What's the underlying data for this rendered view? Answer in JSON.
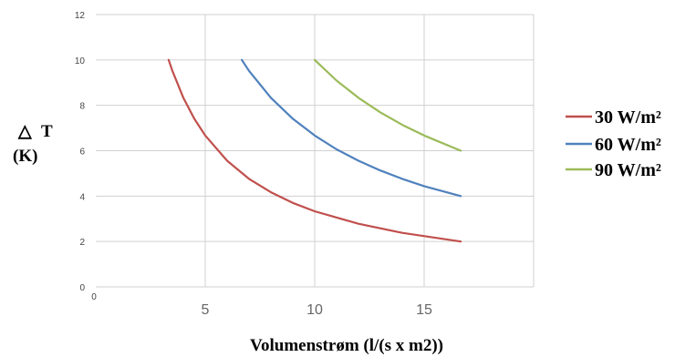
{
  "chart_data": {
    "type": "line",
    "xlabel": "Volumenstrøm (l/(s x m2))",
    "ylabel_symbol": "△",
    "ylabel_text": "T",
    "ylabel_unit": "(K)",
    "xlim": [
      0,
      20
    ],
    "ylim": [
      0,
      12
    ],
    "x_ticks": [
      0,
      5,
      10,
      15
    ],
    "y_ticks": [
      0,
      2,
      4,
      6,
      8,
      10,
      12
    ],
    "grid": true,
    "legend_position": "right",
    "series": [
      {
        "name": "30 W/m²",
        "color": "#c0504d",
        "x": [
          3.33,
          3.5,
          4,
          4.5,
          5,
          6,
          7,
          8,
          9,
          10,
          12,
          14,
          16.67
        ],
        "y": [
          10,
          9.52,
          8.33,
          7.41,
          6.67,
          5.56,
          4.76,
          4.17,
          3.7,
          3.33,
          2.78,
          2.38,
          2
        ]
      },
      {
        "name": "60 W/m²",
        "color": "#4f81bd",
        "x": [
          6.67,
          7,
          8,
          9,
          10,
          11,
          12,
          13,
          14,
          15,
          16.67
        ],
        "y": [
          10,
          9.52,
          8.33,
          7.41,
          6.67,
          6.06,
          5.56,
          5.13,
          4.76,
          4.44,
          4
        ]
      },
      {
        "name": "90 W/m²",
        "color": "#9bbb59",
        "x": [
          10,
          11,
          12,
          13,
          14,
          15,
          16.67
        ],
        "y": [
          10,
          9.09,
          8.33,
          7.69,
          7.14,
          6.67,
          6
        ]
      }
    ]
  }
}
